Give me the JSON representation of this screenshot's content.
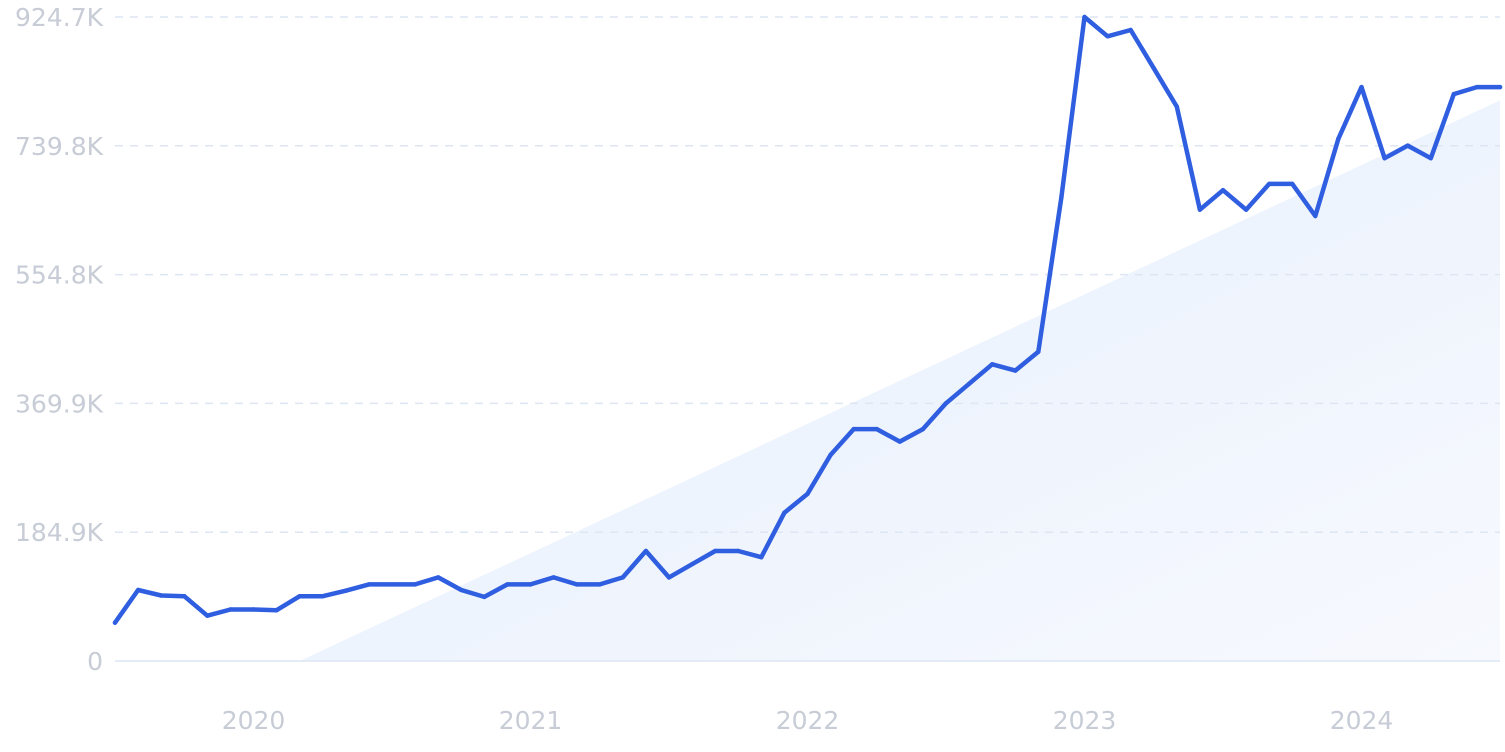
{
  "chart_data": {
    "type": "line",
    "title": "",
    "xlabel": "",
    "ylabel": "",
    "ylim": [
      0,
      924700
    ],
    "ytick_labels": [
      "0",
      "184.9K",
      "369.9K",
      "554.8K",
      "739.8K",
      "924.7K"
    ],
    "ytick_values": [
      0,
      184900,
      369900,
      554800,
      739800,
      924700
    ],
    "xlim": [
      "2019-07",
      "2024-07"
    ],
    "xtick_labels": [
      "2020",
      "2021",
      "2022",
      "2023",
      "2024"
    ],
    "xtick_values": [
      "2020-01",
      "2021-01",
      "2022-01",
      "2023-01",
      "2024-01"
    ],
    "grid": true,
    "legend": "none",
    "series": [
      {
        "color": "#2f5ee0",
        "x": [
          "2019-07",
          "2019-08",
          "2019-09",
          "2019-10",
          "2019-11",
          "2019-12",
          "2020-01",
          "2020-02",
          "2020-03",
          "2020-04",
          "2020-05",
          "2020-06",
          "2020-07",
          "2020-08",
          "2020-09",
          "2020-10",
          "2020-11",
          "2020-12",
          "2021-01",
          "2021-02",
          "2021-03",
          "2021-04",
          "2021-05",
          "2021-06",
          "2021-07",
          "2021-08",
          "2021-09",
          "2021-10",
          "2021-11",
          "2021-12",
          "2022-01",
          "2022-02",
          "2022-03",
          "2022-04",
          "2022-05",
          "2022-06",
          "2022-07",
          "2022-08",
          "2022-09",
          "2022-10",
          "2022-11",
          "2022-12",
          "2023-01",
          "2023-02",
          "2023-03",
          "2023-04",
          "2023-05",
          "2023-06",
          "2023-07",
          "2023-08",
          "2023-09",
          "2023-10",
          "2023-11",
          "2023-12",
          "2024-01",
          "2024-02",
          "2024-03",
          "2024-04",
          "2024-05",
          "2024-06",
          "2024-07"
        ],
        "values": [
          55000,
          102000,
          94000,
          93000,
          65000,
          74000,
          74000,
          73000,
          93000,
          93000,
          101000,
          110000,
          110000,
          110000,
          120000,
          102000,
          92000,
          110000,
          110000,
          120000,
          110000,
          110000,
          120000,
          158000,
          120000,
          139000,
          158000,
          158000,
          149000,
          213000,
          240000,
          296000,
          333000,
          333000,
          315000,
          333000,
          370000,
          398000,
          426000,
          417000,
          444000,
          666000,
          924700,
          897000,
          906000,
          851000,
          796000,
          648000,
          676000,
          648000,
          685000,
          685000,
          639000,
          750000,
          824000,
          722000,
          740000,
          722000,
          814000,
          824000,
          824000
        ]
      }
    ],
    "trend": {
      "color": "#dfeafb",
      "x": [
        "2020-03",
        "2024-07"
      ],
      "values": [
        0,
        805000
      ]
    }
  }
}
